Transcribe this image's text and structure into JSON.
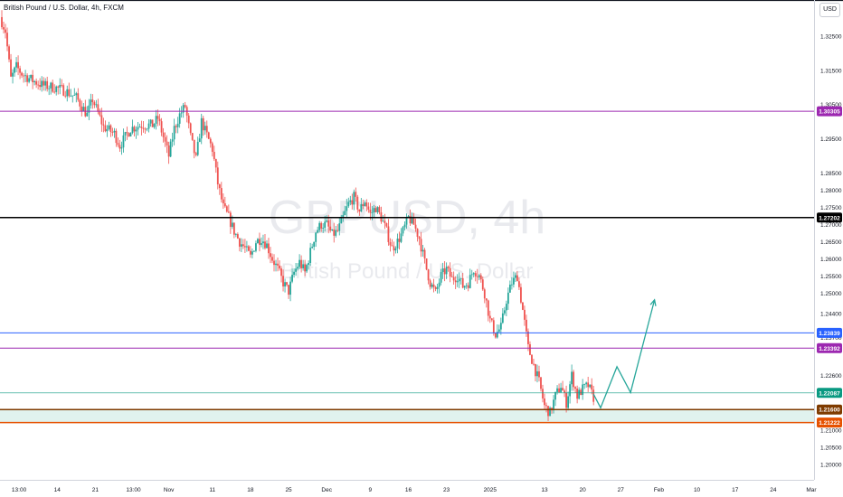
{
  "header": {
    "symbol_title": "British Pound / U.S. Dollar, 4h, FXCM",
    "currency_label": "USD"
  },
  "watermark": {
    "symbol": "GBPUSD, 4h",
    "name": "British Pound / U.S. Dollar"
  },
  "colors": {
    "bull": "#26a69a",
    "bear": "#ef5350",
    "magenta_line": "#9c27b0",
    "blue_line": "#2962ff",
    "black_line": "#000000",
    "brown_line": "#7f3b00",
    "orange_line": "#e65100",
    "zone_fill": "#e0f2ee",
    "projection": "#26a69a",
    "last_price": "#089981"
  },
  "chart_data": {
    "type": "candlestick",
    "y_range": [
      1.1955,
      1.3355
    ],
    "x_range_days": [
      0,
      149.5
    ],
    "y_ticks": [
      "1.32500",
      "1.31500",
      "1.30500",
      "1.29500",
      "1.28500",
      "1.28000",
      "1.27500",
      "1.27000",
      "1.26500",
      "1.26000",
      "1.25500",
      "1.25000",
      "1.24400",
      "1.23700",
      "1.22600",
      "1.21000",
      "1.20500",
      "1.20000"
    ],
    "x_ticks": [
      {
        "day": 3.5,
        "label": "13:00"
      },
      {
        "day": 10.5,
        "label": "14"
      },
      {
        "day": 17.5,
        "label": "21"
      },
      {
        "day": 24.5,
        "label": "13:00"
      },
      {
        "day": 31,
        "label": "Nov"
      },
      {
        "day": 39,
        "label": "11"
      },
      {
        "day": 46,
        "label": "18"
      },
      {
        "day": 53,
        "label": "25"
      },
      {
        "day": 60,
        "label": "Dec"
      },
      {
        "day": 68,
        "label": "9"
      },
      {
        "day": 75,
        "label": "16"
      },
      {
        "day": 82,
        "label": "23"
      },
      {
        "day": 90,
        "label": "2025"
      },
      {
        "day": 100,
        "label": "13"
      },
      {
        "day": 107,
        "label": "20"
      },
      {
        "day": 114,
        "label": "27"
      },
      {
        "day": 121,
        "label": "Feb"
      },
      {
        "day": 128,
        "label": "10"
      },
      {
        "day": 135,
        "label": "17"
      },
      {
        "day": 142,
        "label": "24"
      },
      {
        "day": 149,
        "label": "Mar"
      }
    ],
    "horizontal_levels": [
      {
        "price": 1.30305,
        "label": "1.30305",
        "color": "#9c27b0",
        "width": 1
      },
      {
        "price": 1.27202,
        "label": "1.27202",
        "color": "#000000",
        "width": 1.5
      },
      {
        "price": 1.23839,
        "label": "1.23839",
        "color": "#2962ff",
        "width": 1
      },
      {
        "price": 1.23392,
        "label": "1.23392",
        "color": "#9c27b0",
        "width": 1
      },
      {
        "price": 1.22087,
        "label": "1.22087",
        "color": "#089981",
        "width": 0.6
      },
      {
        "price": 1.216,
        "label": "1.21600",
        "color": "#7f3b00",
        "width": 1.5
      },
      {
        "price": 1.21222,
        "label": "1.21222",
        "color": "#e65100",
        "width": 1.5
      }
    ],
    "zone": [
      1.21222,
      1.216
    ],
    "price_path": [
      [
        0,
        1.3305
      ],
      [
        1,
        1.3265
      ],
      [
        2,
        1.3125
      ],
      [
        3,
        1.316
      ],
      [
        4,
        1.314
      ],
      [
        6,
        1.312
      ],
      [
        8,
        1.3105
      ],
      [
        10,
        1.31
      ],
      [
        12,
        1.309
      ],
      [
        14,
        1.307
      ],
      [
        16,
        1.302
      ],
      [
        17,
        1.3065
      ],
      [
        18,
        1.3025
      ],
      [
        19,
        1.2985
      ],
      [
        21,
        1.2965
      ],
      [
        22,
        1.293
      ],
      [
        24,
        1.298
      ],
      [
        26,
        1.299
      ],
      [
        28,
        1.299
      ],
      [
        29,
        1.301
      ],
      [
        30,
        1.2955
      ],
      [
        31,
        1.29
      ],
      [
        32,
        1.298
      ],
      [
        33,
        1.302
      ],
      [
        34,
        1.3045
      ],
      [
        35,
        1.2955
      ],
      [
        36,
        1.289
      ],
      [
        37,
        1.3
      ],
      [
        38,
        1.296
      ],
      [
        39,
        1.292
      ],
      [
        40,
        1.282
      ],
      [
        41,
        1.275
      ],
      [
        42,
        1.272
      ],
      [
        43,
        1.268
      ],
      [
        44,
        1.265
      ],
      [
        45,
        1.263
      ],
      [
        46,
        1.2605
      ],
      [
        47,
        1.265
      ],
      [
        48,
        1.266
      ],
      [
        49,
        1.264
      ],
      [
        50,
        1.26
      ],
      [
        51,
        1.257
      ],
      [
        52,
        1.253
      ],
      [
        53,
        1.2505
      ],
      [
        54,
        1.256
      ],
      [
        55,
        1.259
      ],
      [
        56,
        1.256
      ],
      [
        57,
        1.262
      ],
      [
        58,
        1.268
      ],
      [
        59,
        1.27
      ],
      [
        60,
        1.27
      ],
      [
        61,
        1.267
      ],
      [
        62,
        1.268
      ],
      [
        63,
        1.272
      ],
      [
        64,
        1.276
      ],
      [
        65,
        1.278
      ],
      [
        66,
        1.274
      ],
      [
        67,
        1.277
      ],
      [
        68,
        1.273
      ],
      [
        69,
        1.275
      ],
      [
        70,
        1.272
      ],
      [
        71,
        1.268
      ],
      [
        72,
        1.263
      ],
      [
        73,
        1.265
      ],
      [
        74,
        1.268
      ],
      [
        75,
        1.272
      ],
      [
        76,
        1.27
      ],
      [
        77,
        1.266
      ],
      [
        78,
        1.259
      ],
      [
        79,
        1.253
      ],
      [
        80,
        1.25
      ],
      [
        81,
        1.255
      ],
      [
        82,
        1.257
      ],
      [
        83,
        1.254
      ],
      [
        84,
        1.255
      ],
      [
        85,
        1.252
      ],
      [
        86,
        1.253
      ],
      [
        87,
        1.257
      ],
      [
        88,
        1.255
      ],
      [
        89,
        1.25
      ],
      [
        90,
        1.242
      ],
      [
        91,
        1.238
      ],
      [
        92,
        1.24
      ],
      [
        93,
        1.248
      ],
      [
        94,
        1.253
      ],
      [
        95,
        1.255
      ],
      [
        96,
        1.245
      ],
      [
        97,
        1.234
      ],
      [
        98,
        1.229
      ],
      [
        99,
        1.224
      ],
      [
        100,
        1.217
      ],
      [
        101,
        1.215
      ],
      [
        102,
        1.22
      ],
      [
        103,
        1.223
      ],
      [
        104,
        1.218
      ],
      [
        105,
        1.226
      ],
      [
        106,
        1.22
      ],
      [
        107,
        1.222
      ],
      [
        108,
        1.223
      ],
      [
        109,
        1.2195
      ]
    ],
    "projection": [
      [
        109,
        1.2205
      ],
      [
        110.3,
        1.2165
      ],
      [
        113.3,
        1.2285
      ],
      [
        115.8,
        1.221
      ],
      [
        120.2,
        1.248
      ]
    ]
  }
}
